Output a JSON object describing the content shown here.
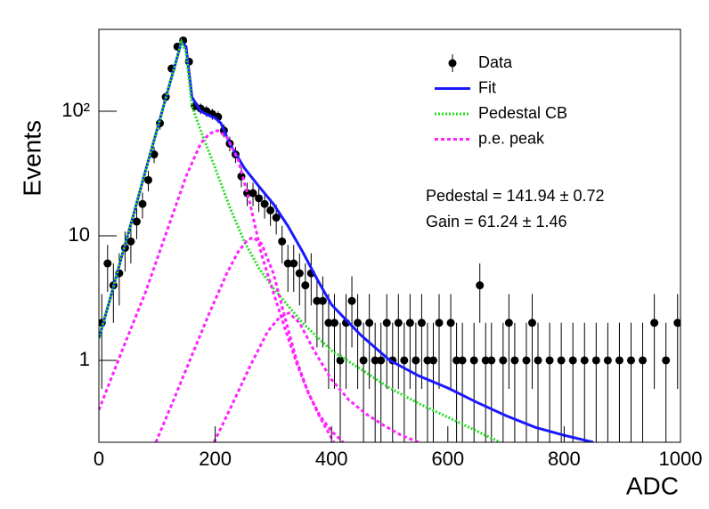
{
  "chart_data": {
    "type": "scatter",
    "x_label": "ADC",
    "y_label": "Events",
    "xlim": [
      0,
      1000
    ],
    "xticks": [
      0,
      200,
      400,
      600,
      800,
      1000
    ],
    "ylim": [
      0.22,
      454
    ],
    "log_y": true,
    "yticks": [
      1,
      10,
      {
        "value": 100,
        "label": "10²"
      }
    ],
    "legend": "top-right",
    "annotations": [
      "Pedestal = 141.94 ± 0.72",
      "Gain = 61.24 ± 1.46"
    ],
    "series": [
      {
        "name": "Data",
        "type": "errorbar",
        "color": "#000000",
        "x": [
          5,
          15,
          25,
          35,
          45,
          55,
          65,
          75,
          85,
          95,
          105,
          115,
          125,
          135,
          145,
          155,
          165,
          175,
          185,
          195,
          205,
          215,
          225,
          235,
          245,
          255,
          265,
          275,
          285,
          295,
          305,
          315,
          325,
          335,
          345,
          355,
          365,
          375,
          385,
          395,
          405,
          415,
          425,
          435,
          445,
          455,
          465,
          475,
          485,
          495,
          505,
          515,
          525,
          535,
          545,
          555,
          565,
          575,
          585,
          605,
          615,
          625,
          645,
          655,
          665,
          675,
          695,
          705,
          715,
          735,
          745,
          755,
          775,
          795,
          815,
          835,
          855,
          875,
          895,
          915,
          935,
          955,
          975,
          995
        ],
        "values": [
          2,
          6,
          4,
          5,
          8,
          9,
          13,
          18,
          28,
          45,
          80,
          130,
          220,
          330,
          370,
          250,
          110,
          105,
          100,
          95,
          90,
          70,
          55,
          45,
          30,
          22,
          22,
          20,
          18,
          16,
          14,
          9,
          6,
          6,
          5,
          4,
          5,
          3,
          3,
          2,
          2,
          1,
          2,
          3,
          2,
          1,
          2,
          1,
          1,
          2,
          1,
          2,
          1,
          2,
          1,
          2,
          1,
          1,
          2,
          2,
          1,
          1,
          1,
          4,
          1,
          1,
          1,
          2,
          1,
          1,
          2,
          1,
          1,
          1,
          1,
          1,
          1,
          1,
          1,
          1,
          1,
          2,
          1,
          2
        ],
        "errors": [
          1.41,
          2.45,
          2,
          2.24,
          2.83,
          3,
          3.61,
          4.24,
          5.29,
          6.71,
          8.94,
          11.4,
          14.83,
          18.17,
          19.24,
          15.81,
          10.49,
          10.25,
          10,
          9.75,
          9.49,
          8.37,
          7.42,
          6.71,
          5.48,
          4.69,
          4.69,
          4.47,
          4.24,
          4,
          3.74,
          3,
          2.45,
          2.45,
          2.24,
          2,
          2.24,
          1.73,
          1.73,
          1.41,
          1.41,
          1,
          1.41,
          1.73,
          1.41,
          1,
          1.41,
          1,
          1,
          1.41,
          1,
          1.41,
          1,
          1.41,
          1,
          1.41,
          1,
          1,
          1.41,
          1.41,
          1,
          1,
          1,
          2,
          1,
          1,
          1,
          1.41,
          1,
          1,
          1.41,
          1,
          1,
          1,
          1,
          1,
          1,
          1,
          1,
          1,
          1,
          1.41,
          1,
          1.41
        ]
      },
      {
        "name": "Fit",
        "type": "line",
        "style": "solid",
        "color": "#1a1aff",
        "x": [
          0,
          20,
          40,
          60,
          80,
          100,
          120,
          135,
          142,
          150,
          160,
          175,
          190,
          200,
          210,
          225,
          250,
          275,
          300,
          325,
          350,
          375,
          400,
          450,
          500,
          550,
          600,
          650,
          700,
          750,
          800,
          850
        ],
        "values": [
          1.5,
          3.2,
          7,
          15,
          33,
          71,
          155,
          275,
          360,
          330,
          130,
          100,
          92,
          88,
          80,
          55,
          35,
          25,
          18,
          12,
          7.5,
          4.5,
          2.8,
          1.6,
          1.0,
          0.75,
          0.6,
          0.46,
          0.36,
          0.29,
          0.25,
          0.22
        ]
      },
      {
        "name": "Pedestal CB",
        "type": "line",
        "style": "dotted",
        "color": "#22dd22",
        "x": [
          0,
          20,
          40,
          60,
          80,
          100,
          120,
          135,
          142,
          150,
          160,
          175,
          200,
          225,
          250,
          275,
          300,
          350,
          400,
          450,
          500,
          550,
          600,
          650,
          690
        ],
        "values": [
          1.5,
          3.2,
          7,
          15,
          33,
          71,
          155,
          275,
          360,
          300,
          110,
          70,
          35,
          17,
          9,
          5.5,
          3.8,
          2.0,
          1.2,
          0.85,
          0.6,
          0.45,
          0.35,
          0.27,
          0.22
        ]
      },
      {
        "name": "p.e. peak",
        "type": "segments",
        "style": "dashed",
        "color": "#ff22ff",
        "segments": [
          {
            "x": [
              0,
              40,
              80,
              120,
              150,
              175,
              190,
              204,
              220,
              240,
              260,
              280,
              300,
              320,
              340,
              360,
              380,
              404
            ],
            "values": [
              0.4,
              1.2,
              3.5,
              12,
              30,
              55,
              66,
              70,
              62,
              40,
              18,
              7,
              3.5,
              1.8,
              0.95,
              0.55,
              0.35,
              0.22
            ]
          },
          {
            "x": [
              98,
              130,
              160,
              190,
              220,
              240,
              255,
              265,
              280,
              300,
              320,
              340,
              360,
              380,
              400,
              420
            ],
            "values": [
              0.22,
              0.5,
              1.1,
              2.4,
              5,
              7.5,
              9.2,
              9.7,
              8.6,
              5,
              2.2,
              1.0,
              0.55,
              0.36,
              0.27,
              0.22
            ]
          },
          {
            "x": [
              198,
              230,
              260,
              290,
              310,
              327,
              345,
              370,
              400,
              430,
              460,
              490,
              520,
              550
            ],
            "values": [
              0.22,
              0.45,
              0.9,
              1.7,
              2.2,
              2.4,
              2.0,
              1.2,
              0.7,
              0.48,
              0.37,
              0.3,
              0.25,
              0.22
            ]
          }
        ]
      }
    ]
  }
}
